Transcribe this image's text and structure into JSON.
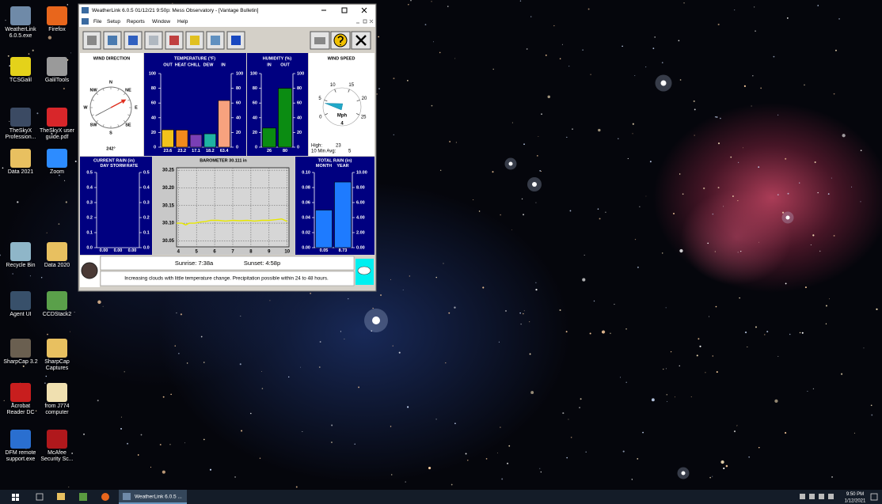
{
  "desktop": {
    "icons": [
      {
        "label": "WeatherLink 6.0.5.exe"
      },
      {
        "label": "Firefox"
      },
      {
        "label": "TCSGalil"
      },
      {
        "label": "GalilTools"
      },
      {
        "label": "TheSkyX Profession..."
      },
      {
        "label": "TheSkyX user guide.pdf"
      },
      {
        "label": "Data 2021"
      },
      {
        "label": "Zoom"
      },
      {
        "label": "Recycle Bin"
      },
      {
        "label": "Data 2020"
      },
      {
        "label": "Agent UI"
      },
      {
        "label": "CCDStack2"
      },
      {
        "label": "SharpCap 3.2"
      },
      {
        "label": "SharpCap Captures"
      },
      {
        "label": "Acrobat Reader DC"
      },
      {
        "label": "from J774 computer"
      },
      {
        "label": "DFM remote support.exe"
      },
      {
        "label": "McAfee Security Sc..."
      }
    ]
  },
  "window": {
    "title": "WeatherLink 6.0.5  01/12/21  9:50p: Mess Observatory - [Vantage Bulletin]",
    "menu": [
      "File",
      "Setup",
      "Reports",
      "Window",
      "Help"
    ],
    "wind_direction": {
      "title": "WIND DIRECTION",
      "compass": [
        "N",
        "NE",
        "E",
        "SE",
        "S",
        "SW",
        "W",
        "NW"
      ],
      "value": 242,
      "value_label": "242°"
    },
    "temperature": {
      "title": "TEMPERATURE (°F)",
      "categories": [
        "OUT",
        "HEAT",
        "CHILL",
        "DEW",
        "IN"
      ],
      "values": [
        23.6,
        23.2,
        17.1,
        18.2,
        63.4
      ],
      "colors": [
        "#f2c21b",
        "#f08a1c",
        "#7a3fb5",
        "#1fb3a3",
        "#f7a27e"
      ],
      "ylim": [
        0,
        100
      ],
      "yticks": [
        0,
        20,
        40,
        60,
        80,
        100
      ]
    },
    "humidity": {
      "title": "HUMIDITY (%)",
      "categories": [
        "IN",
        "OUT"
      ],
      "values": [
        26,
        80
      ],
      "color": "#0b8c12",
      "ylim": [
        0,
        100
      ],
      "yticks": [
        0,
        20,
        40,
        60,
        80,
        100
      ]
    },
    "wind_speed": {
      "title": "WIND SPEED",
      "dial_ticks": [
        0,
        5,
        10,
        15,
        20,
        25
      ],
      "unit": "Mph",
      "value": 4,
      "high_label": "High:",
      "high": 23,
      "avg_label": "10 Min Avg:",
      "avg": 5
    },
    "current_rain": {
      "title": "CURRENT RAIN (in)",
      "categories": [
        "DAY",
        "STORM",
        "RATE"
      ],
      "values": [
        0,
        0,
        0
      ],
      "value_labels": [
        "0.00",
        "0.00",
        "0.00"
      ],
      "ylim": [
        0,
        0.5
      ],
      "yticks": [
        {
          "value": 0,
          "label": "0.0"
        },
        0.1,
        0.2,
        0.3,
        0.4,
        0.5
      ]
    },
    "barometer": {
      "title": "BAROMETER 30.111 in",
      "x": [
        3.9,
        4.2,
        4.4,
        4.6,
        4.9,
        5.2,
        5.5,
        5.8,
        6.2,
        6.6,
        7.0,
        7.4,
        7.8,
        8.2,
        8.6,
        9.0,
        9.4,
        9.7,
        10.0
      ],
      "values": [
        30.1,
        30.1,
        30.095,
        30.1,
        30.1,
        30.103,
        30.105,
        30.108,
        30.108,
        30.106,
        30.108,
        30.107,
        30.108,
        30.106,
        30.108,
        30.108,
        30.11,
        30.112,
        30.105
      ],
      "xlim": [
        3.9,
        10.1
      ],
      "xticks": [
        4,
        5,
        6,
        7,
        8,
        9,
        10
      ],
      "ylim": [
        30.033,
        30.257
      ],
      "yticks": [
        30.05,
        {
          "value": 30.1,
          "label": "30.10"
        },
        30.15,
        {
          "value": 30.2,
          "label": "30.20"
        },
        30.25
      ],
      "color": "#e8e800"
    },
    "total_rain": {
      "title": "TOTAL RAIN (in)",
      "categories": [
        "MONTH",
        "YEAR"
      ],
      "values": [
        0.05,
        8.73
      ],
      "axes": [
        "y",
        "y2"
      ],
      "value_labels": [
        "0.05",
        "8.73"
      ],
      "color": "#1e7bff",
      "ylim": [
        0,
        0.1
      ],
      "yticks": [
        {
          "value": 0,
          "label": "0.00"
        },
        0.02,
        0.04,
        0.06,
        0.08,
        {
          "value": 0.1,
          "label": "0.10"
        }
      ],
      "y2lim": [
        0,
        10
      ],
      "y2ticks": [
        {
          "value": 0,
          "label": "0.00"
        },
        {
          "value": 2,
          "label": "2.00"
        },
        {
          "value": 4,
          "label": "4.00"
        },
        {
          "value": 6,
          "label": "6.00"
        },
        {
          "value": 8,
          "label": "8.00"
        },
        {
          "value": 10,
          "label": "10.00"
        }
      ]
    },
    "sunrise": "Sunrise:  7:38a",
    "sunset": "Sunset:  4:58p",
    "forecast": "Increasing clouds with little temperature change.  Precipitation possible within 24 to 48 hours."
  },
  "taskbar": {
    "app": "WeatherLink 6.0.5 ...",
    "time": "9:50 PM",
    "date": "1/12/2021"
  }
}
